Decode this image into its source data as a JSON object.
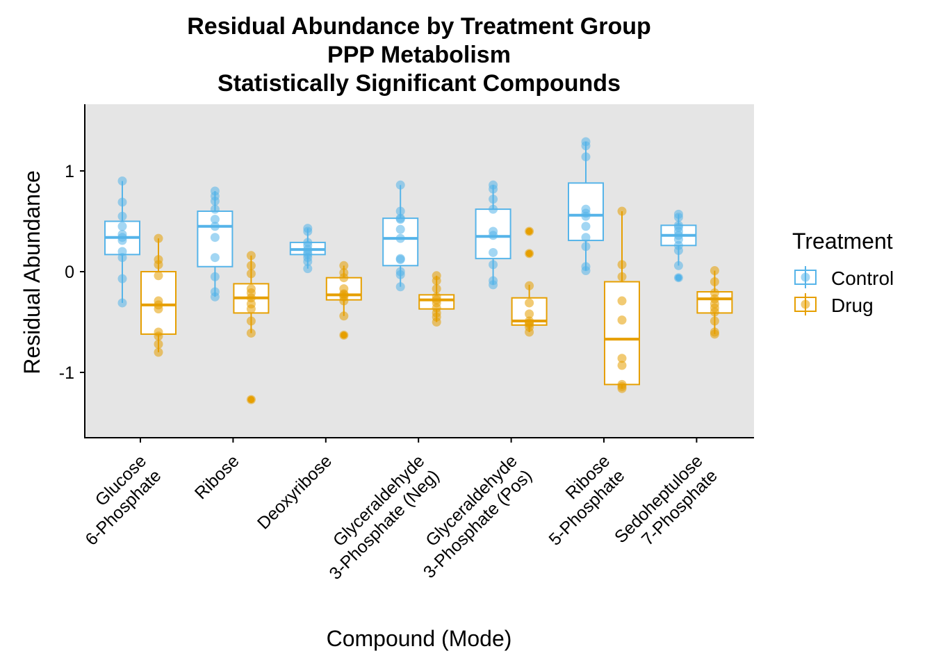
{
  "chart_data": {
    "type": "box",
    "title_lines": [
      "Residual Abundance by Treatment Group",
      "PPP Metabolism",
      "Statistically Significant Compounds"
    ],
    "xlabel": "Compound (Mode)",
    "ylabel": "Residual Abundance",
    "ylim": [
      -1.65,
      1.65
    ],
    "yticks": [
      1,
      0,
      -1
    ],
    "ytick_labels": [
      "1",
      "0",
      "-1"
    ],
    "panel_background": "#e5e5e5",
    "grid": false,
    "legend": {
      "title": "Treatment",
      "position": "right",
      "entries": [
        {
          "label": "Control",
          "color": "#56B4E9"
        },
        {
          "label": "Drug",
          "color": "#E69F00"
        }
      ]
    },
    "categories": [
      {
        "lines": [
          "Glucose",
          "6-Phosphate"
        ]
      },
      {
        "lines": [
          "Ribose"
        ]
      },
      {
        "lines": [
          "Deoxyribose"
        ]
      },
      {
        "lines": [
          "Glyceraldehyde",
          "3-Phosphate (Neg)"
        ]
      },
      {
        "lines": [
          "Glyceraldehyde",
          "3-Phosphate (Pos)"
        ]
      },
      {
        "lines": [
          "Ribose",
          "5-Phosphate"
        ]
      },
      {
        "lines": [
          "Sedoheptulose",
          "7-Phosphate"
        ]
      }
    ],
    "series": [
      {
        "name": "Control",
        "color": "#56B4E9",
        "boxes": [
          {
            "q1": 0.17,
            "median": 0.34,
            "q3": 0.5,
            "whisker_low": -0.31,
            "whisker_high": 0.9,
            "outliers": [],
            "points": [
              0.9,
              0.69,
              0.55,
              0.45,
              0.37,
              0.34,
              0.31,
              0.2,
              0.14,
              -0.07,
              -0.31
            ]
          },
          {
            "q1": 0.05,
            "median": 0.45,
            "q3": 0.6,
            "whisker_low": -0.25,
            "whisker_high": 0.8,
            "outliers": [],
            "points": [
              0.8,
              0.75,
              0.7,
              0.62,
              0.52,
              0.45,
              0.34,
              0.14,
              -0.05,
              -0.2,
              -0.25
            ]
          },
          {
            "q1": 0.17,
            "median": 0.22,
            "q3": 0.29,
            "whisker_low": 0.03,
            "whisker_high": 0.43,
            "outliers": [],
            "points": [
              0.43,
              0.4,
              0.29,
              0.26,
              0.22,
              0.19,
              0.17,
              0.14,
              0.1,
              0.03
            ]
          },
          {
            "q1": 0.06,
            "median": 0.33,
            "q3": 0.53,
            "whisker_low": -0.15,
            "whisker_high": 0.86,
            "outliers": [],
            "points": [
              0.86,
              0.6,
              0.53,
              0.52,
              0.42,
              0.33,
              0.13,
              0.12,
              0.0,
              -0.03,
              -0.15
            ]
          },
          {
            "q1": 0.13,
            "median": 0.35,
            "q3": 0.62,
            "whisker_low": -0.13,
            "whisker_high": 0.86,
            "outliers": [],
            "points": [
              0.86,
              0.82,
              0.72,
              0.62,
              0.4,
              0.36,
              0.19,
              0.07,
              -0.09,
              -0.13
            ]
          },
          {
            "q1": 0.31,
            "median": 0.56,
            "q3": 0.88,
            "whisker_low": 0.01,
            "whisker_high": 1.29,
            "outliers": [],
            "points": [
              1.29,
              1.25,
              1.14,
              0.62,
              0.58,
              0.55,
              0.45,
              0.34,
              0.25,
              0.05,
              0.01
            ]
          },
          {
            "q1": 0.26,
            "median": 0.36,
            "q3": 0.46,
            "whisker_low": 0.06,
            "whisker_high": 0.57,
            "outliers": [
              -0.06
            ],
            "points": [
              0.57,
              0.54,
              0.46,
              0.44,
              0.4,
              0.36,
              0.32,
              0.26,
              0.21,
              0.06,
              -0.06
            ]
          }
        ]
      },
      {
        "name": "Drug",
        "color": "#E69F00",
        "boxes": [
          {
            "q1": -0.62,
            "median": -0.33,
            "q3": 0.0,
            "whisker_low": -0.8,
            "whisker_high": 0.33,
            "outliers": [],
            "points": [
              0.33,
              0.12,
              0.07,
              -0.04,
              -0.29,
              -0.33,
              -0.37,
              -0.6,
              -0.64,
              -0.72,
              -0.8
            ]
          },
          {
            "q1": -0.41,
            "median": -0.26,
            "q3": -0.12,
            "whisker_low": -0.61,
            "whisker_high": 0.16,
            "outliers": [
              -1.27
            ],
            "points": [
              0.16,
              0.06,
              -0.02,
              -0.17,
              -0.21,
              -0.26,
              -0.32,
              -0.37,
              -0.49,
              -0.61,
              -1.27
            ]
          },
          {
            "q1": -0.28,
            "median": -0.23,
            "q3": -0.06,
            "whisker_low": -0.44,
            "whisker_high": 0.06,
            "outliers": [
              -0.63
            ],
            "points": [
              0.06,
              -0.01,
              -0.06,
              -0.17,
              -0.22,
              -0.23,
              -0.25,
              -0.29,
              -0.44,
              -0.63
            ]
          },
          {
            "q1": -0.37,
            "median": -0.28,
            "q3": -0.23,
            "whisker_low": -0.5,
            "whisker_high": -0.04,
            "outliers": [],
            "points": [
              -0.04,
              -0.09,
              -0.17,
              -0.25,
              -0.28,
              -0.31,
              -0.36,
              -0.41,
              -0.45,
              -0.5
            ]
          },
          {
            "q1": -0.53,
            "median": -0.49,
            "q3": -0.26,
            "whisker_low": -0.6,
            "whisker_high": -0.13,
            "outliers": [
              0.4,
              0.18
            ],
            "points": [
              0.4,
              0.18,
              -0.14,
              -0.31,
              -0.42,
              -0.49,
              -0.51,
              -0.52,
              -0.55,
              -0.6
            ]
          },
          {
            "q1": -1.12,
            "median": -0.67,
            "q3": -0.1,
            "whisker_low": -1.16,
            "whisker_high": 0.6,
            "outliers": [],
            "points": [
              0.6,
              0.07,
              -0.05,
              -0.29,
              -0.48,
              -0.86,
              -0.93,
              -1.12,
              -1.14,
              -1.16
            ]
          },
          {
            "q1": -0.41,
            "median": -0.27,
            "q3": -0.2,
            "whisker_low": -0.62,
            "whisker_high": 0.01,
            "outliers": [],
            "points": [
              0.01,
              -0.1,
              -0.21,
              -0.27,
              -0.32,
              -0.36,
              -0.4,
              -0.49,
              -0.6,
              -0.62
            ]
          }
        ]
      }
    ]
  }
}
